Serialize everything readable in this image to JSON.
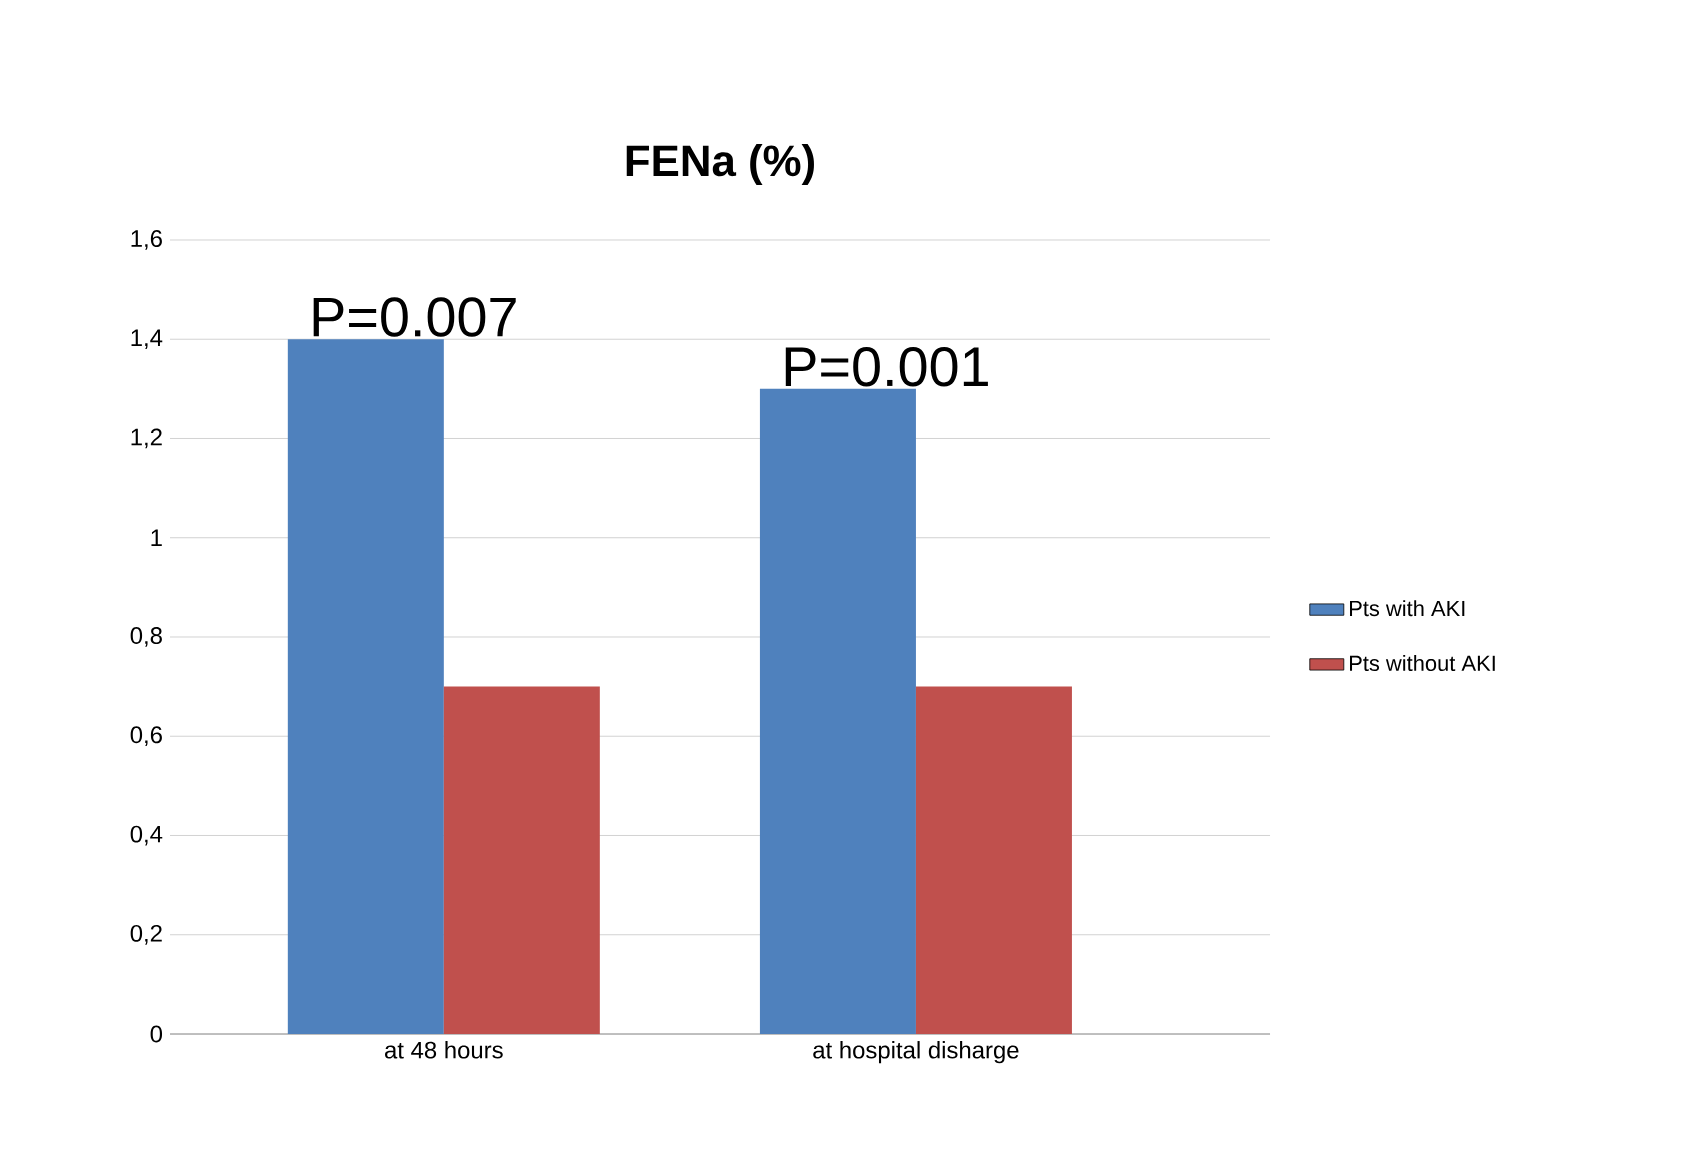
{
  "chart_data": {
    "type": "bar",
    "title": "FENa (%)",
    "categories": [
      "at 48 hours",
      "at hospital disharge"
    ],
    "series": [
      {
        "name": "Pts with AKI",
        "color": "#4f81bd",
        "values": [
          1.4,
          1.3
        ]
      },
      {
        "name": "Pts without AKI",
        "color": "#c0504d",
        "values": [
          0.7,
          0.7
        ]
      }
    ],
    "ylim": [
      0,
      1.6
    ],
    "yticks": [
      {
        "value": 0,
        "label": "0"
      },
      {
        "value": 0.2,
        "label": "0,2"
      },
      {
        "value": 0.4,
        "label": "0,4"
      },
      {
        "value": 0.6,
        "label": "0,6"
      },
      {
        "value": 0.8,
        "label": "0,8"
      },
      {
        "value": 1,
        "label": "1"
      },
      {
        "value": 1.2,
        "label": "1,2"
      },
      {
        "value": 1.4,
        "label": "1,4"
      },
      {
        "value": 1.6,
        "label": "1,6"
      }
    ],
    "grid": "y",
    "legend": "right",
    "annotations": [
      "P=0.007",
      "P=0.001"
    ]
  }
}
